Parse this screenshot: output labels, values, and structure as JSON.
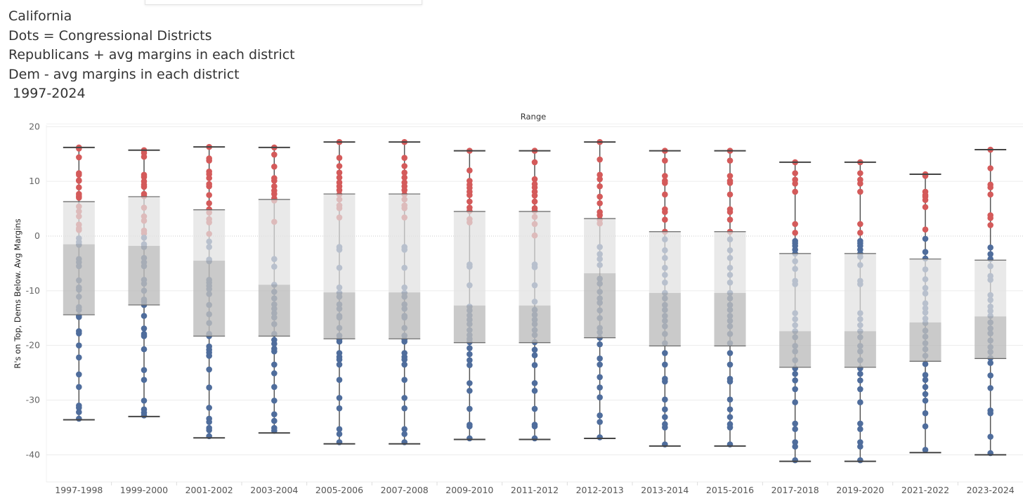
{
  "titles": [
    "California",
    "Dots = Congressional Districts",
    "Republicans + avg margins in each district",
    "Dem - avg margins in each district",
    " 1997-2024"
  ],
  "chart_data": {
    "type": "box",
    "title": "Range",
    "xlabel": "",
    "ylabel": "R's on Top, Dems Below. Avg Margins",
    "ylim": [
      -44,
      20
    ],
    "yticks": [
      20,
      10,
      0,
      -10,
      -20,
      -30,
      -40
    ],
    "grid": true,
    "colors": {
      "rep": "#d45a5a",
      "dem": "#4f6d9c",
      "upper_box": "#e0e0e0",
      "lower_box": "#bdbdbd",
      "whisker": "#555555"
    },
    "categories": [
      "1997-1998",
      "1999-2000",
      "2001-2002",
      "2003-2004",
      "2005-2006",
      "2007-2008",
      "2009-2010",
      "2011-2012",
      "2012-2013",
      "2013-2014",
      "2015-2016",
      "2017-2018",
      "2019-2020",
      "2021-2022",
      "2023-2024"
    ],
    "boxes": [
      {
        "max": 16.2,
        "q3": 6.3,
        "median": -1.5,
        "q1": -14.4,
        "min": -33.6
      },
      {
        "max": 15.7,
        "q3": 7.2,
        "median": -1.8,
        "q1": -12.6,
        "min": -33.0
      },
      {
        "max": 16.3,
        "q3": 4.8,
        "median": -4.5,
        "q1": -18.3,
        "min": -36.9
      },
      {
        "max": 16.2,
        "q3": 6.7,
        "median": -8.9,
        "q1": -18.3,
        "min": -36.0
      },
      {
        "max": 17.2,
        "q3": 7.7,
        "median": -10.3,
        "q1": -18.8,
        "min": -38.0
      },
      {
        "max": 17.2,
        "q3": 7.7,
        "median": -10.3,
        "q1": -18.8,
        "min": -38.0
      },
      {
        "max": 15.6,
        "q3": 4.5,
        "median": -12.7,
        "q1": -19.5,
        "min": -37.2
      },
      {
        "max": 15.6,
        "q3": 4.5,
        "median": -12.7,
        "q1": -19.5,
        "min": -37.2
      },
      {
        "max": 17.2,
        "q3": 3.2,
        "median": -6.8,
        "q1": -18.6,
        "min": -37.0
      },
      {
        "max": 15.6,
        "q3": 0.8,
        "median": -10.4,
        "q1": -20.1,
        "min": -38.4
      },
      {
        "max": 15.6,
        "q3": 0.8,
        "median": -10.4,
        "q1": -20.1,
        "min": -38.4
      },
      {
        "max": 13.5,
        "q3": -3.2,
        "median": -17.4,
        "q1": -24.0,
        "min": -41.2
      },
      {
        "max": 13.5,
        "q3": -3.2,
        "median": -17.4,
        "q1": -24.0,
        "min": -41.2
      },
      {
        "max": 11.3,
        "q3": -4.2,
        "median": -15.8,
        "q1": -22.9,
        "min": -39.6
      },
      {
        "max": 15.8,
        "q3": -4.4,
        "median": -14.7,
        "q1": -22.4,
        "min": -40.0
      }
    ],
    "points": [
      [
        16.2,
        16,
        14.4,
        11.5,
        11.2,
        10.2,
        10.1,
        8.9,
        7.7,
        7.3,
        7,
        5.4,
        4.5,
        3.6,
        2.1,
        1.4,
        1.1,
        -0.4,
        -1.1,
        -1.6,
        -4.2,
        -4.8,
        -5.5,
        -8.1,
        -9.4,
        -9.8,
        -11.1,
        -13,
        -13.5,
        -14.6,
        -14.8,
        -17.4,
        -17.8,
        -20,
        -22.2,
        -25.3,
        -27.6,
        -31,
        -31.4,
        -32.2,
        -33.4
      ],
      [
        15.7,
        15.2,
        14.5,
        11.2,
        10.8,
        10,
        9.4,
        9,
        7.7,
        7.3,
        5.2,
        3.6,
        2.8,
        1,
        0.5,
        -0.3,
        -1.5,
        -2,
        -4,
        -4.8,
        -5.5,
        -8,
        -8.7,
        -10,
        -11.6,
        -12,
        -12.6,
        -14.6,
        -16.9,
        -17.9,
        -18.3,
        -20.7,
        -24.5,
        -26.3,
        -30.1,
        -31.7,
        -32.3,
        -32.8
      ],
      [
        16.3,
        14.2,
        13.8,
        11.8,
        11.3,
        10.6,
        9.5,
        9.1,
        7.5,
        6,
        4.9,
        4.3,
        3.1,
        2.5,
        0.4,
        -1,
        -2,
        -4.3,
        -4.6,
        -8,
        -8.5,
        -9.1,
        -9.7,
        -10.6,
        -12.6,
        -14.3,
        -15.9,
        -17.9,
        -18.3,
        -20.2,
        -20.8,
        -21.3,
        -21.9,
        -24.4,
        -27.7,
        -31.4,
        -33.4,
        -34,
        -35.1,
        -35.5,
        -36.6
      ],
      [
        16.2,
        14.9,
        12.7,
        10.6,
        10.1,
        9.1,
        8.3,
        7.7,
        6.9,
        6.5,
        2.6,
        -4.2,
        -5.6,
        -8.9,
        -10.2,
        -11.4,
        -12.5,
        -13.3,
        -14.1,
        -14.9,
        -16.1,
        -17.9,
        -19,
        -19.7,
        -20.6,
        -21.1,
        -23.5,
        -25.1,
        -27.6,
        -30.1,
        -32.6,
        -33.8,
        -35.1,
        -35.6
      ],
      [
        17.2,
        14.3,
        12.8,
        11.6,
        10.7,
        9.8,
        9.1,
        8.4,
        7.6,
        6.7,
        5.6,
        5.1,
        3.4,
        -2,
        -2.5,
        -5.8,
        -9.4,
        -10.4,
        -11.1,
        -12.5,
        -13.3,
        -14.6,
        -14.9,
        -16.8,
        -18.2,
        -18.9,
        -19.3,
        -21.4,
        -22.1,
        -22.6,
        -23.5,
        -26.3,
        -29.6,
        -31.5,
        -35.3,
        -36.2,
        -37.7
      ],
      [
        17.2,
        14.3,
        12.8,
        11.6,
        10.7,
        9.8,
        9.1,
        8.4,
        7.6,
        6.7,
        5.6,
        5.1,
        3.4,
        -2,
        -2.5,
        -5.8,
        -9.4,
        -10.4,
        -11.1,
        -12.5,
        -13.3,
        -14.6,
        -14.9,
        -16.8,
        -18.2,
        -18.9,
        -19.3,
        -21.4,
        -22.1,
        -22.6,
        -23.5,
        -26.3,
        -29.6,
        -31.5,
        -35.3,
        -36.2,
        -37.7
      ],
      [
        15.6,
        12,
        10.1,
        9.4,
        8.8,
        8.1,
        7.5,
        6.3,
        5.2,
        4.6,
        3.1,
        2.5,
        -5.2,
        -5.6,
        -9,
        -12.9,
        -13.6,
        -14.5,
        -15.3,
        -16.1,
        -17.2,
        -18.1,
        -18.8,
        -19.4,
        -20.5,
        -21.6,
        -22.7,
        -23.6,
        -26.9,
        -28.3,
        -31.6,
        -34.5,
        -34.8,
        -37
      ],
      [
        15.6,
        13.5,
        10.4,
        9.5,
        8.9,
        8.1,
        7.4,
        6.3,
        5.1,
        4.6,
        3.5,
        2.2,
        0.1,
        -5.2,
        -5.7,
        -9,
        -12,
        -13.5,
        -14.4,
        -15.3,
        -16.1,
        -17.2,
        -18.1,
        -19.4,
        -20.8,
        -21.8,
        -23.6,
        -26.9,
        -28.3,
        -31.6,
        -34.5,
        -34.8,
        -37
      ],
      [
        17.2,
        14,
        11.2,
        10.4,
        9.1,
        7.2,
        6,
        4.4,
        3.8,
        3,
        2.3,
        -2,
        -3.3,
        -4.2,
        -5.3,
        -7.8,
        -8.7,
        -10.2,
        -11.4,
        -12.2,
        -13.6,
        -15,
        -16.8,
        -17.6,
        -18.6,
        -19.8,
        -22.4,
        -23.5,
        -25.8,
        -27.7,
        -29.5,
        -32.8,
        -34,
        -36.8
      ],
      [
        15.6,
        13.8,
        11,
        10.1,
        9.7,
        7.6,
        4.9,
        4.4,
        3,
        0.8,
        -0.6,
        -2.6,
        -4,
        -5.8,
        -7.1,
        -8.5,
        -10.4,
        -11.4,
        -12.6,
        -13.5,
        -14.6,
        -15.5,
        -16.5,
        -17.9,
        -19.6,
        -21.4,
        -23.5,
        -26.1,
        -26.6,
        -29.9,
        -31.7,
        -33.1,
        -34.4,
        -35,
        -38.1
      ],
      [
        15.6,
        13.8,
        11,
        10.1,
        9.7,
        7.6,
        4.9,
        4.4,
        3,
        0.8,
        -0.6,
        -2.6,
        -4,
        -5.8,
        -7.1,
        -8.5,
        -10.4,
        -11.4,
        -12.6,
        -13.5,
        -14.6,
        -15.5,
        -16.5,
        -17.9,
        -19.6,
        -21.4,
        -23.5,
        -26.1,
        -26.6,
        -29.9,
        -31.7,
        -33.1,
        -34.4,
        -35,
        -38.1
      ],
      [
        13.5,
        11.5,
        10.3,
        9.6,
        8.1,
        2.2,
        0.6,
        -0.9,
        -1.3,
        -1.8,
        -2.5,
        -3.2,
        -4.6,
        -6,
        -8.2,
        -8.8,
        -14.1,
        -15.2,
        -16.3,
        -17.4,
        -18.5,
        -20.1,
        -21.1,
        -22.7,
        -24.2,
        -25.2,
        -26.4,
        -28,
        -30.4,
        -34.3,
        -35.3,
        -37.7,
        -38.5,
        -41
      ],
      [
        13.5,
        11.5,
        10.3,
        9.6,
        8.1,
        2.2,
        0.6,
        -0.9,
        -1.3,
        -1.8,
        -2.5,
        -3.2,
        -3.8,
        -5.3,
        -8.2,
        -8.8,
        -14.1,
        -15.2,
        -16.3,
        -17.4,
        -18.5,
        -20.1,
        -21.1,
        -22.7,
        -24.2,
        -25.2,
        -26.4,
        -28,
        -30.4,
        -34.3,
        -35.3,
        -37.7,
        -38.5,
        -41
      ],
      [
        11.3,
        11,
        8.1,
        7.5,
        7.2,
        6.6,
        5.3,
        1.2,
        -0.5,
        -2.9,
        -4.1,
        -6.1,
        -7.9,
        -9.5,
        -10.5,
        -12.3,
        -13.2,
        -14,
        -15.1,
        -15.9,
        -17.3,
        -18.4,
        -19.6,
        -20.7,
        -21.9,
        -23.4,
        -25.4,
        -26.3,
        -27.6,
        -28.9,
        -30.1,
        -32.4,
        -34.8,
        -39.1
      ],
      [
        15.8,
        12.4,
        9.4,
        8.9,
        7.6,
        3.8,
        3.3,
        2,
        -2.1,
        -3.3,
        -4.2,
        -5.5,
        -7.3,
        -8,
        -10.8,
        -11.7,
        -12.9,
        -13.7,
        -14.6,
        -15.8,
        -16.9,
        -17.8,
        -19.1,
        -20.3,
        -21.2,
        -22.3,
        -23.2,
        -25.5,
        -27.8,
        -31.9,
        -32.4,
        -36.7,
        -39.7
      ]
    ]
  }
}
